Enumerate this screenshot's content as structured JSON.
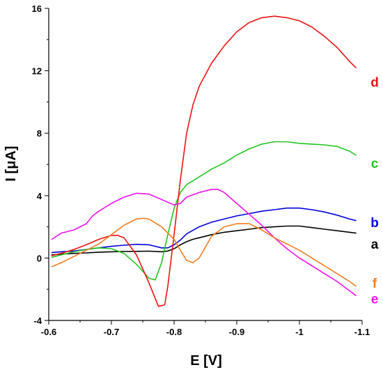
{
  "chart_data": {
    "type": "line",
    "title": "",
    "xlabel": "E [V]",
    "ylabel": "I [μA]",
    "xlim": [
      -0.6,
      -1.1
    ],
    "ylim": [
      -4,
      16
    ],
    "x_ticks": [
      -0.6,
      -0.7,
      -0.8,
      -0.9,
      -1.0,
      -1.1
    ],
    "x_tick_labels": [
      "-0.6",
      "-0.7",
      "-0.8",
      "-0.9",
      "-1",
      "-1.1"
    ],
    "y_ticks": [
      -4,
      0,
      4,
      8,
      12,
      16
    ],
    "y_tick_labels": [
      "-4",
      "0",
      "4",
      "8",
      "12",
      "16"
    ],
    "grid": false,
    "series": [
      {
        "name": "a",
        "color": "#000000",
        "label_y": 0.9,
        "x": [
          -0.605,
          -0.62,
          -0.64,
          -0.66,
          -0.68,
          -0.7,
          -0.72,
          -0.74,
          -0.76,
          -0.78,
          -0.79,
          -0.8,
          -0.81,
          -0.82,
          -0.83,
          -0.84,
          -0.86,
          -0.88,
          -0.9,
          -0.92,
          -0.94,
          -0.96,
          -0.98,
          -1.0,
          -1.02,
          -1.04,
          -1.06,
          -1.08,
          -1.09
        ],
        "y": [
          0.2,
          0.25,
          0.3,
          0.33,
          0.37,
          0.4,
          0.42,
          0.43,
          0.44,
          0.4,
          0.45,
          0.6,
          0.85,
          1.05,
          1.2,
          1.3,
          1.5,
          1.65,
          1.75,
          1.85,
          1.95,
          2.0,
          2.05,
          2.05,
          1.95,
          1.85,
          1.75,
          1.65,
          1.6
        ]
      },
      {
        "name": "b",
        "color": "#0000dd",
        "label_y": 2.3,
        "x": [
          -0.605,
          -0.62,
          -0.64,
          -0.66,
          -0.68,
          -0.7,
          -0.72,
          -0.74,
          -0.76,
          -0.78,
          -0.79,
          -0.8,
          -0.81,
          -0.82,
          -0.84,
          -0.86,
          -0.88,
          -0.9,
          -0.92,
          -0.94,
          -0.96,
          -0.98,
          -1.0,
          -1.02,
          -1.04,
          -1.06,
          -1.08,
          -1.09
        ],
        "y": [
          0.35,
          0.4,
          0.45,
          0.55,
          0.65,
          0.75,
          0.82,
          0.88,
          0.85,
          0.65,
          0.65,
          0.85,
          1.15,
          1.55,
          2.0,
          2.3,
          2.5,
          2.7,
          2.85,
          3.0,
          3.1,
          3.2,
          3.2,
          3.1,
          2.95,
          2.75,
          2.5,
          2.4
        ]
      },
      {
        "name": "c",
        "color": "#22c422",
        "label_y": 6.1,
        "x": [
          -0.605,
          -0.62,
          -0.64,
          -0.66,
          -0.68,
          -0.7,
          -0.72,
          -0.74,
          -0.76,
          -0.77,
          -0.78,
          -0.79,
          -0.8,
          -0.81,
          -0.82,
          -0.84,
          -0.86,
          -0.88,
          -0.9,
          -0.92,
          -0.94,
          -0.96,
          -0.98,
          -1.0,
          -1.02,
          -1.04,
          -1.06,
          -1.08,
          -1.09
        ],
        "y": [
          0.05,
          0.2,
          0.4,
          0.55,
          0.65,
          0.6,
          0.3,
          -0.4,
          -1.3,
          -1.4,
          -0.3,
          1.5,
          3.2,
          4.2,
          4.7,
          5.2,
          5.7,
          6.1,
          6.6,
          7.0,
          7.3,
          7.45,
          7.45,
          7.35,
          7.3,
          7.25,
          7.15,
          6.85,
          6.6
        ]
      },
      {
        "name": "d",
        "color": "#ee1111",
        "label_y": 11.3,
        "x": [
          -0.605,
          -0.62,
          -0.64,
          -0.66,
          -0.68,
          -0.7,
          -0.71,
          -0.72,
          -0.74,
          -0.76,
          -0.775,
          -0.785,
          -0.79,
          -0.8,
          -0.81,
          -0.82,
          -0.83,
          -0.84,
          -0.86,
          -0.88,
          -0.9,
          -0.92,
          -0.94,
          -0.96,
          -0.98,
          -1.0,
          -1.02,
          -1.04,
          -1.06,
          -1.08,
          -1.09
        ],
        "y": [
          0.15,
          0.3,
          0.55,
          0.85,
          1.2,
          1.45,
          1.45,
          1.3,
          0.2,
          -1.6,
          -3.1,
          -3.0,
          -1.8,
          1.5,
          5.0,
          8.0,
          9.8,
          11.0,
          12.5,
          13.6,
          14.5,
          15.1,
          15.4,
          15.5,
          15.4,
          15.2,
          14.8,
          14.2,
          13.5,
          12.6,
          12.2
        ]
      },
      {
        "name": "e",
        "color": "#ee11ee",
        "label_y": -2.6,
        "x": [
          -0.605,
          -0.62,
          -0.64,
          -0.66,
          -0.67,
          -0.68,
          -0.7,
          -0.72,
          -0.74,
          -0.76,
          -0.78,
          -0.8,
          -0.81,
          -0.82,
          -0.84,
          -0.86,
          -0.87,
          -0.88,
          -0.9,
          -0.92,
          -0.94,
          -0.96,
          -0.98,
          -1.0,
          -1.02,
          -1.04,
          -1.06,
          -1.08,
          -1.09
        ],
        "y": [
          1.2,
          1.6,
          1.8,
          2.2,
          2.7,
          3.0,
          3.5,
          3.9,
          4.15,
          4.1,
          3.75,
          3.4,
          3.5,
          3.9,
          4.2,
          4.4,
          4.4,
          4.2,
          3.5,
          2.8,
          2.1,
          1.3,
          0.6,
          0.0,
          -0.5,
          -1.0,
          -1.5,
          -2.1,
          -2.4
        ]
      },
      {
        "name": "f",
        "color": "#f47c20",
        "label_y": -1.6,
        "x": [
          -0.605,
          -0.62,
          -0.64,
          -0.66,
          -0.68,
          -0.7,
          -0.72,
          -0.74,
          -0.75,
          -0.76,
          -0.78,
          -0.8,
          -0.81,
          -0.82,
          -0.83,
          -0.84,
          -0.85,
          -0.86,
          -0.88,
          -0.9,
          -0.92,
          -0.94,
          -0.96,
          -0.98,
          -1.0,
          -1.02,
          -1.04,
          -1.06,
          -1.08,
          -1.09
        ],
        "y": [
          -0.55,
          -0.3,
          0.1,
          0.5,
          0.9,
          1.5,
          2.1,
          2.5,
          2.55,
          2.5,
          2.0,
          1.2,
          0.5,
          -0.15,
          -0.3,
          0.0,
          0.7,
          1.4,
          2.0,
          2.2,
          2.2,
          1.8,
          1.3,
          0.9,
          0.5,
          0.0,
          -0.5,
          -1.0,
          -1.5,
          -1.8
        ]
      }
    ]
  }
}
